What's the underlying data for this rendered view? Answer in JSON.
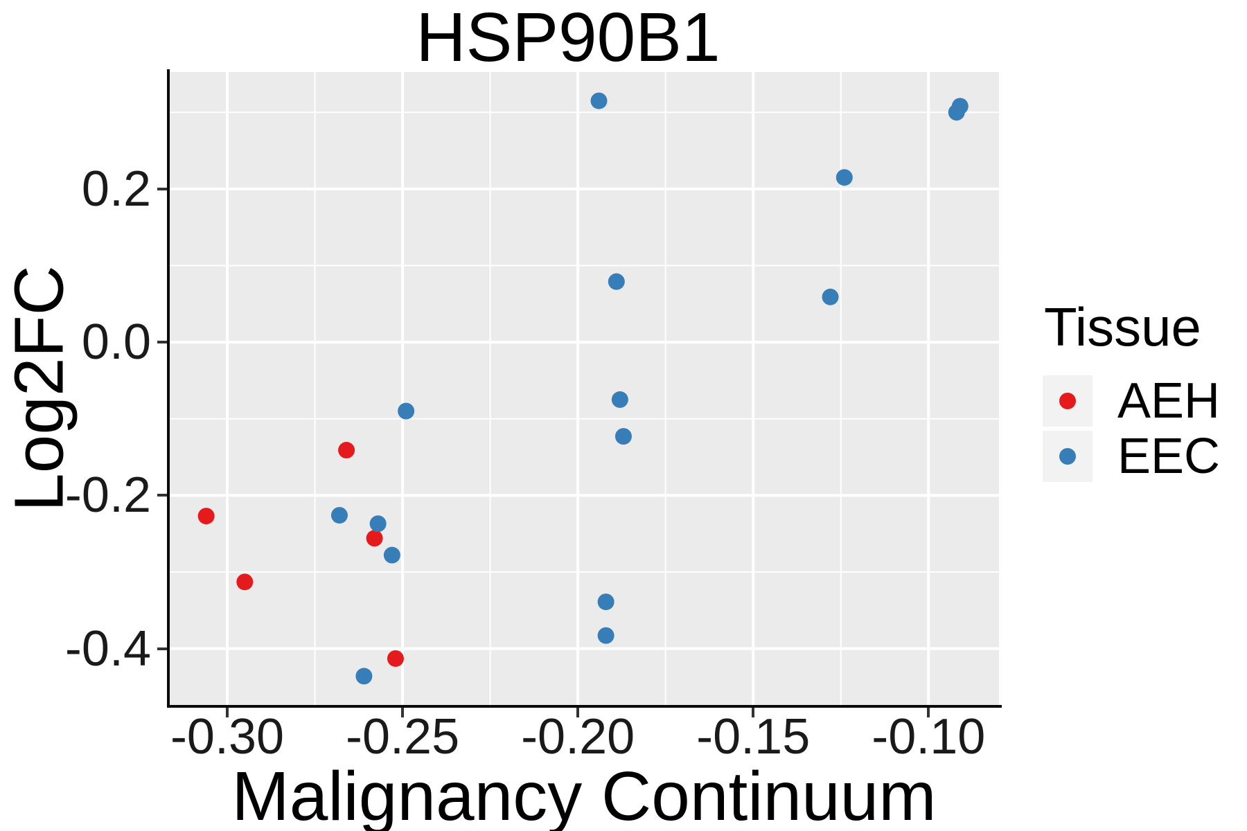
{
  "figure": {
    "background": "#ffffff"
  },
  "chart_data": {
    "type": "scatter",
    "title": "HSP90B1",
    "xlabel": "Malignancy Continuum",
    "ylabel": "Log2FC",
    "xlim": [
      -0.3164,
      -0.0799
    ],
    "ylim": [
      -0.4736,
      0.3526
    ],
    "x_ticks": [
      {
        "value": -0.3,
        "label": "-0.30"
      },
      {
        "value": -0.25,
        "label": "-0.25"
      },
      {
        "value": -0.2,
        "label": "-0.20"
      },
      {
        "value": -0.15,
        "label": "-0.15"
      },
      {
        "value": -0.1,
        "label": "-0.10"
      }
    ],
    "y_ticks": [
      {
        "value": 0.2,
        "label": "0.2"
      },
      {
        "value": 0.0,
        "label": "0.0"
      },
      {
        "value": -0.2,
        "label": "-0.2"
      },
      {
        "value": -0.4,
        "label": "-0.4"
      }
    ],
    "x_minor": [
      -0.275,
      -0.225,
      -0.175,
      -0.125
    ],
    "y_minor": [
      0.3,
      0.1,
      -0.1,
      -0.3
    ],
    "grid": {
      "major_color": "#ffffff",
      "minor_color": "#ffffff",
      "panel_background": "#EBEBEB"
    },
    "point_radius_px": 12,
    "series": [
      {
        "name": "AEH",
        "color": "#E41A1C",
        "points": [
          [
            -0.306,
            -0.227
          ],
          [
            -0.295,
            -0.313
          ],
          [
            -0.266,
            -0.141
          ],
          [
            -0.258,
            -0.256
          ],
          [
            -0.252,
            -0.413
          ]
        ]
      },
      {
        "name": "EEC",
        "color": "#377EB8",
        "points": [
          [
            -0.194,
            0.315
          ],
          [
            -0.092,
            0.3
          ],
          [
            -0.091,
            0.308
          ],
          [
            -0.124,
            0.215
          ],
          [
            -0.189,
            0.079
          ],
          [
            -0.128,
            0.059
          ],
          [
            -0.188,
            -0.075
          ],
          [
            -0.187,
            -0.123
          ],
          [
            -0.249,
            -0.09
          ],
          [
            -0.268,
            -0.226
          ],
          [
            -0.257,
            -0.237
          ],
          [
            -0.253,
            -0.278
          ],
          [
            -0.192,
            -0.339
          ],
          [
            -0.192,
            -0.383
          ],
          [
            -0.261,
            -0.436
          ]
        ]
      }
    ],
    "legend": {
      "title": "Tissue",
      "position": "right",
      "key_background": "#F2F2F2",
      "entries": [
        {
          "label": "AEH",
          "color": "#E41A1C"
        },
        {
          "label": "EEC",
          "color": "#377EB8"
        }
      ]
    }
  }
}
